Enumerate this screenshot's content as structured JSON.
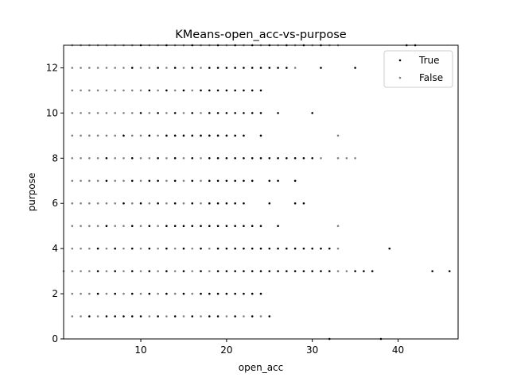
{
  "chart_data": {
    "type": "scatter",
    "title": "KMeans-open_acc-vs-purpose",
    "xlabel": "open_acc",
    "ylabel": "purpose",
    "xlim": [
      1,
      47
    ],
    "ylim": [
      0,
      13
    ],
    "xticks": [
      10,
      20,
      30,
      40
    ],
    "yticks": [
      0,
      2,
      4,
      6,
      8,
      10,
      12
    ],
    "grid": false,
    "legend_placement": "top-right",
    "series": [
      {
        "name": "True",
        "color": "#000000",
        "points_by_y": [
          {
            "y": 0,
            "x": [
              32,
              38
            ]
          },
          {
            "y": 1,
            "x": [
              4,
              6,
              7,
              8,
              9,
              10,
              12,
              14,
              16,
              18,
              19,
              21,
              23,
              25
            ]
          },
          {
            "y": 2,
            "x": [
              5,
              7,
              9,
              11,
              13,
              15,
              17,
              18,
              19,
              20,
              21,
              22,
              23,
              24
            ]
          },
          {
            "y": 3,
            "x": [
              5,
              7,
              9,
              11,
              13,
              15,
              17,
              19,
              20,
              21,
              22,
              23,
              24,
              25,
              26,
              27,
              28,
              29,
              30,
              31,
              32,
              35,
              36,
              37,
              44,
              46
            ]
          },
          {
            "y": 4,
            "x": [
              5,
              7,
              9,
              11,
              13,
              15,
              17,
              19,
              20,
              21,
              22,
              23,
              24,
              25,
              26,
              27,
              28,
              29,
              30,
              31,
              32,
              39
            ]
          },
          {
            "y": 5,
            "x": [
              6,
              9,
              11,
              13,
              14,
              15,
              16,
              17,
              18,
              19,
              20,
              21,
              22,
              23,
              24,
              26
            ]
          },
          {
            "y": 6,
            "x": [
              8,
              10,
              12,
              14,
              16,
              18,
              19,
              20,
              21,
              22,
              25,
              28,
              29
            ]
          },
          {
            "y": 7,
            "x": [
              6,
              9,
              11,
              12,
              14,
              16,
              18,
              19,
              20,
              21,
              22,
              23,
              25,
              26,
              28
            ]
          },
          {
            "y": 8,
            "x": [
              6,
              9,
              12,
              14,
              16,
              18,
              19,
              20,
              21,
              22,
              23,
              24,
              25,
              26,
              27,
              28,
              29,
              30
            ]
          },
          {
            "y": 9,
            "x": [
              8,
              11,
              13,
              14,
              15,
              16,
              17,
              18,
              19,
              20,
              21,
              22,
              24
            ]
          },
          {
            "y": 10,
            "x": [
              10,
              12,
              14,
              16,
              18,
              19,
              20,
              21,
              22,
              23,
              24,
              26,
              30
            ]
          },
          {
            "y": 11,
            "x": [
              11,
              13,
              15,
              17,
              18,
              19,
              20,
              21,
              22,
              23,
              24
            ]
          },
          {
            "y": 12,
            "x": [
              9,
              12,
              14,
              16,
              18,
              19,
              20,
              21,
              22,
              23,
              24,
              25,
              26,
              27,
              31,
              35
            ]
          },
          {
            "y": 13,
            "x": [
              10,
              13,
              16,
              19,
              21,
              23,
              25,
              27,
              29,
              31,
              41,
              42
            ]
          }
        ]
      },
      {
        "name": "False",
        "color": "#808080",
        "points_by_y": [
          {
            "y": 0,
            "x": []
          },
          {
            "y": 1,
            "x": [
              2,
              3,
              5,
              11,
              13,
              15,
              17,
              20,
              22,
              24
            ]
          },
          {
            "y": 2,
            "x": [
              2,
              3,
              4,
              6,
              8,
              10,
              12,
              14,
              16
            ]
          },
          {
            "y": 3,
            "x": [
              1,
              2,
              3,
              4,
              6,
              8,
              10,
              12,
              14,
              16,
              18,
              33,
              34
            ]
          },
          {
            "y": 4,
            "x": [
              2,
              3,
              4,
              6,
              8,
              10,
              12,
              14,
              16,
              18,
              33
            ]
          },
          {
            "y": 5,
            "x": [
              2,
              3,
              4,
              5,
              7,
              8,
              10,
              12,
              33
            ]
          },
          {
            "y": 6,
            "x": [
              2,
              3,
              4,
              5,
              6,
              7,
              9,
              11,
              13,
              15,
              17
            ]
          },
          {
            "y": 7,
            "x": [
              2,
              3,
              4,
              5,
              7,
              8,
              10,
              13,
              15,
              17
            ]
          },
          {
            "y": 8,
            "x": [
              2,
              3,
              4,
              5,
              7,
              8,
              10,
              11,
              13,
              15,
              17,
              31,
              33,
              34,
              35
            ]
          },
          {
            "y": 9,
            "x": [
              2,
              3,
              4,
              5,
              6,
              7,
              9,
              10,
              12,
              33
            ]
          },
          {
            "y": 10,
            "x": [
              2,
              3,
              4,
              5,
              6,
              7,
              8,
              9,
              11,
              13,
              15,
              17
            ]
          },
          {
            "y": 11,
            "x": [
              2,
              3,
              4,
              5,
              6,
              7,
              8,
              9,
              10,
              12,
              14,
              16
            ]
          },
          {
            "y": 12,
            "x": [
              2,
              3,
              4,
              5,
              6,
              7,
              8,
              10,
              11,
              13,
              15,
              17,
              28
            ]
          },
          {
            "y": 13,
            "x": [
              2,
              3,
              4,
              5,
              6,
              7,
              8,
              9,
              11,
              12,
              14,
              15,
              17,
              18,
              20,
              22,
              24,
              26,
              28,
              30,
              32,
              33
            ]
          }
        ]
      }
    ]
  }
}
